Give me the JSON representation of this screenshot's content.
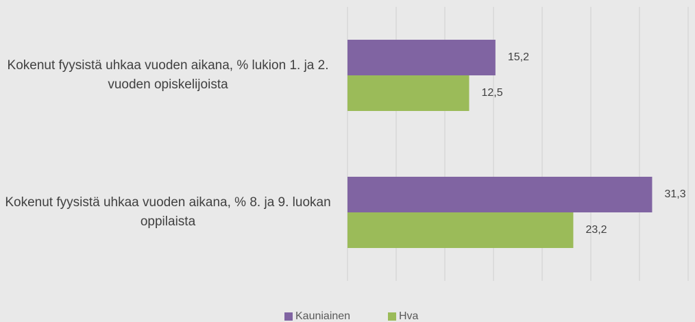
{
  "chart_data": {
    "type": "barh",
    "categories": [
      "Kokenut fyysistä uhkaa vuoden aikana, % lukion 1. ja 2. vuoden opiskelijoista",
      "Kokenut fyysistä uhkaa vuoden aikana, % 8. ja 9. luokan oppilaista"
    ],
    "series": [
      {
        "name": "Kauniainen",
        "color": "#8064a2",
        "values": [
          15.2,
          31.3
        ],
        "value_labels": [
          "15,2",
          "31,3"
        ]
      },
      {
        "name": "Hva",
        "color": "#9bbb59",
        "values": [
          12.5,
          23.2
        ],
        "value_labels": [
          "12,5",
          "23,2"
        ]
      }
    ],
    "xlim": [
      0,
      35
    ],
    "xticks": [
      0,
      5,
      10,
      15,
      20,
      25,
      30,
      35
    ],
    "grid": true,
    "legend": "bottom"
  }
}
